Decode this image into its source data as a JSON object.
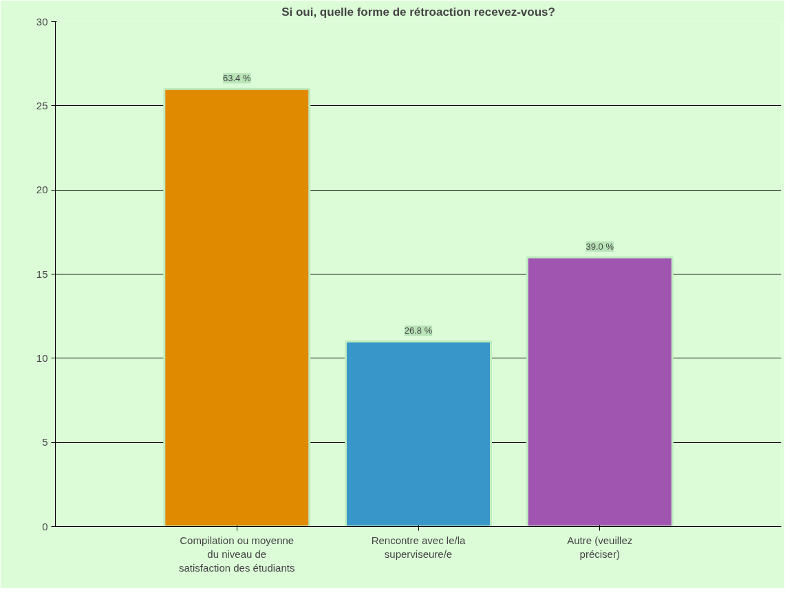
{
  "chart_data": {
    "type": "bar",
    "title": "Si oui, quelle forme de rétroaction recevez-vous?",
    "categories": [
      "Compilation ou moyenne\ndu niveau de\nsatisfaction des étudiants",
      "Rencontre avec le/la\nsuperviseure/e",
      "Autre (veuillez\npréciser)"
    ],
    "values": [
      26,
      11,
      16
    ],
    "colors": [
      "#e08a00",
      "#3896c8",
      "#a055b0"
    ],
    "annotations": [
      {
        "text": "63.4 %",
        "x": "Compilation ou moyenne\ndu niveau de\nsatisfaction des étudiants",
        "y": 26
      },
      {
        "text": "26.8 %",
        "x": "Rencontre avec le/la\nsuperviseure/e",
        "y": 11
      },
      {
        "text": "39.0 %",
        "x": "Autre (veuillez\npréciser)",
        "y": 16
      }
    ],
    "ylim": [
      0,
      30
    ],
    "yticks": [
      0,
      5,
      10,
      15,
      20,
      25,
      30
    ],
    "grid": "y"
  }
}
